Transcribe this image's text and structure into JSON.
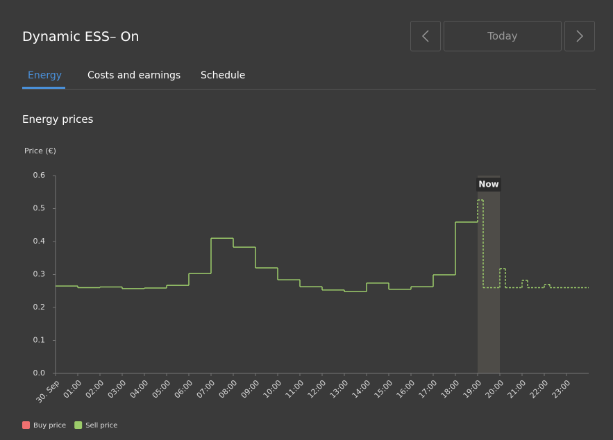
{
  "header": {
    "title": "Dynamic ESS– On",
    "today": "Today"
  },
  "tabs": [
    "Energy",
    "Costs and earnings",
    "Schedule"
  ],
  "section_title": "Energy prices",
  "chart_data": {
    "type": "step",
    "ylabel": "Price (€)",
    "xlim": [
      0,
      24
    ],
    "ylim": [
      0,
      0.6
    ],
    "yticks": [
      {
        "value": 0,
        "label": "0.0"
      },
      0.1,
      0.2,
      0.3,
      0.4,
      0.5,
      0.6
    ],
    "xticks": [
      {
        "value": 0,
        "label": "30. Sep"
      },
      {
        "value": 1,
        "label": "01:00"
      },
      {
        "value": 2,
        "label": "02:00"
      },
      {
        "value": 3,
        "label": "03:00"
      },
      {
        "value": 4,
        "label": "04:00"
      },
      {
        "value": 5,
        "label": "05:00"
      },
      {
        "value": 6,
        "label": "06:00"
      },
      {
        "value": 7,
        "label": "07:00"
      },
      {
        "value": 8,
        "label": "08:00"
      },
      {
        "value": 9,
        "label": "09:00"
      },
      {
        "value": 10,
        "label": "10:00"
      },
      {
        "value": 11,
        "label": "11:00"
      },
      {
        "value": 12,
        "label": "12:00"
      },
      {
        "value": 13,
        "label": "13:00"
      },
      {
        "value": 14,
        "label": "14:00"
      },
      {
        "value": 15,
        "label": "15:00"
      },
      {
        "value": 16,
        "label": "16:00"
      },
      {
        "value": 17,
        "label": "17:00"
      },
      {
        "value": 18,
        "label": "18:00"
      },
      {
        "value": 19,
        "label": "19:00"
      },
      {
        "value": 20,
        "label": "20:00"
      },
      {
        "value": 21,
        "label": "21:00"
      },
      {
        "value": 22,
        "label": "22:00"
      },
      {
        "value": 23,
        "label": "23:00"
      }
    ],
    "now": {
      "label": "Now",
      "x": 19
    },
    "series": [
      {
        "name": "Buy price",
        "color": "#f07070",
        "x": [],
        "values": []
      },
      {
        "name": "Sell price",
        "color": "#9ccc6a",
        "x": [
          0,
          1,
          2,
          3,
          4,
          5,
          6,
          7,
          8,
          9,
          10,
          11,
          12,
          13,
          14,
          15,
          16,
          17,
          18,
          19,
          19.25,
          20,
          20.25,
          21,
          21.25,
          22,
          22.25
        ],
        "values": [
          0.265,
          0.26,
          0.262,
          0.257,
          0.259,
          0.267,
          0.303,
          0.41,
          0.383,
          0.32,
          0.284,
          0.263,
          0.253,
          0.248,
          0.274,
          0.255,
          0.263,
          0.299,
          0.459,
          0.526,
          0.26,
          0.318,
          0.26,
          0.282,
          0.26,
          0.27,
          0.26
        ]
      }
    ]
  }
}
